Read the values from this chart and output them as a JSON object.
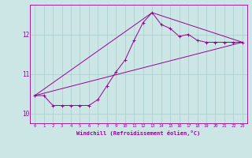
{
  "xlabel": "Windchill (Refroidissement éolien,°C)",
  "background_color": "#cce5e5",
  "line_color": "#990099",
  "grid_color": "#aacccc",
  "xlim": [
    -0.5,
    23.5
  ],
  "ylim": [
    9.75,
    12.75
  ],
  "yticks": [
    10,
    11,
    12
  ],
  "xticks": [
    0,
    1,
    2,
    3,
    4,
    5,
    6,
    7,
    8,
    9,
    10,
    11,
    12,
    13,
    14,
    15,
    16,
    17,
    18,
    19,
    20,
    21,
    22,
    23
  ],
  "series": [
    [
      0,
      10.45
    ],
    [
      1,
      10.45
    ],
    [
      2,
      10.2
    ],
    [
      3,
      10.2
    ],
    [
      4,
      10.2
    ],
    [
      5,
      10.2
    ],
    [
      6,
      10.2
    ],
    [
      7,
      10.35
    ],
    [
      8,
      10.7
    ],
    [
      9,
      11.05
    ],
    [
      10,
      11.35
    ],
    [
      11,
      11.85
    ],
    [
      12,
      12.3
    ],
    [
      13,
      12.55
    ],
    [
      14,
      12.25
    ],
    [
      15,
      12.15
    ],
    [
      16,
      11.95
    ],
    [
      17,
      12.0
    ],
    [
      18,
      11.85
    ],
    [
      19,
      11.8
    ],
    [
      20,
      11.8
    ],
    [
      21,
      11.8
    ],
    [
      22,
      11.8
    ],
    [
      23,
      11.8
    ]
  ],
  "line_straight": [
    [
      0,
      10.45
    ],
    [
      23,
      11.8
    ]
  ],
  "line_peak": [
    [
      0,
      10.45
    ],
    [
      13,
      12.55
    ],
    [
      23,
      11.8
    ]
  ]
}
